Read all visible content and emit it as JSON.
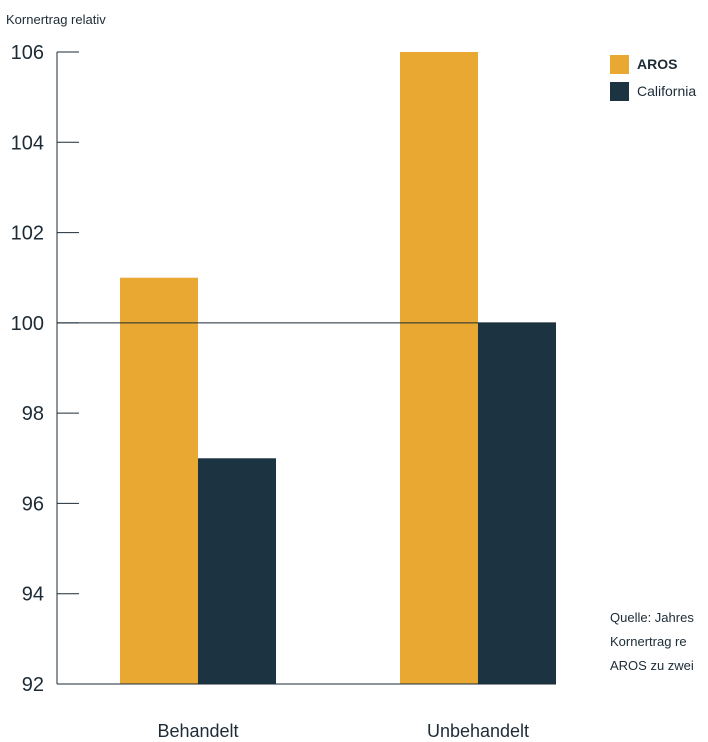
{
  "chart_data": {
    "type": "bar",
    "ylabel": "Kornertrag relativ",
    "xlabel": "",
    "categories": [
      "Behandelt",
      "Unbehandelt"
    ],
    "series": [
      {
        "name": "AROS",
        "color": "#e8a832",
        "values": [
          101,
          106
        ]
      },
      {
        "name": "California",
        "color": "#1c3341",
        "values": [
          97,
          100
        ]
      }
    ],
    "ylim": [
      92,
      106
    ],
    "yticks": [
      92,
      94,
      96,
      98,
      100,
      102,
      104,
      106
    ],
    "reference_line": 100,
    "grid": false,
    "legend_position": "top-right"
  },
  "source_lines": [
    "Quelle: Jahres",
    "Kornertrag re",
    "AROS zu zwei"
  ]
}
